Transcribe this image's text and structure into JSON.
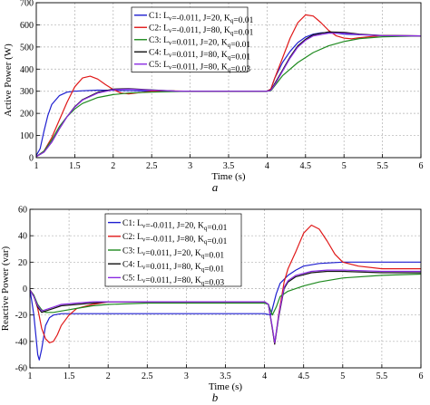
{
  "chart_data": [
    {
      "type": "line",
      "panel_label": "a",
      "xlabel": "Time (s)",
      "ylabel": "Active Power (W)",
      "xlim": [
        1,
        6
      ],
      "ylim": [
        0,
        700
      ],
      "xticks": [
        "1",
        "1.5",
        "2",
        "2.5",
        "3",
        "3.5",
        "4",
        "4.5",
        "5",
        "5.5",
        "6"
      ],
      "yticks": [
        "0",
        "100",
        "200",
        "300",
        "400",
        "500",
        "600",
        "700"
      ],
      "grid": "dashed",
      "legend_position": "top-center",
      "series": [
        {
          "name": "C1: Lv=-0.011, J=20, Kq=0.01",
          "legend": {
            "pre": "C1: L",
            "sub1": "v",
            "mid": "=-0.011, J=20, K",
            "sub2": "q",
            "post": "=0.01"
          },
          "color": "#1f1fd0",
          "x": [
            1,
            1.05,
            1.1,
            1.15,
            1.2,
            1.3,
            1.4,
            1.5,
            1.6,
            1.8,
            2.0,
            2.5,
            3.0,
            3.5,
            4.0,
            4.05,
            4.1,
            4.2,
            4.3,
            4.4,
            4.5,
            4.6,
            4.7,
            4.8,
            4.9,
            5.0,
            5.5,
            6.0
          ],
          "y": [
            10,
            40,
            120,
            190,
            240,
            280,
            296,
            300,
            302,
            305,
            304,
            301,
            300,
            300,
            300,
            310,
            360,
            430,
            480,
            520,
            545,
            558,
            564,
            565,
            562,
            558,
            552,
            550
          ]
        },
        {
          "name": "C2: Lv=-0.011, J=80, Kq=0.01",
          "legend": {
            "pre": "C2: L",
            "sub1": "v",
            "mid": "=-0.011, J=80, K",
            "sub2": "q",
            "post": "=0.01"
          },
          "color": "#e01818",
          "x": [
            1,
            1.1,
            1.2,
            1.3,
            1.4,
            1.5,
            1.6,
            1.7,
            1.8,
            1.9,
            2.0,
            2.1,
            2.2,
            2.3,
            2.5,
            2.7,
            3.0,
            3.5,
            4.0,
            4.05,
            4.1,
            4.2,
            4.3,
            4.4,
            4.5,
            4.6,
            4.7,
            4.8,
            4.9,
            5.0,
            5.1,
            5.2,
            5.5,
            6.0
          ],
          "y": [
            5,
            30,
            90,
            170,
            250,
            320,
            360,
            368,
            355,
            330,
            308,
            292,
            288,
            292,
            300,
            302,
            300,
            300,
            300,
            310,
            360,
            450,
            540,
            610,
            645,
            640,
            610,
            575,
            550,
            540,
            537,
            542,
            552,
            550
          ]
        },
        {
          "name": "C3: Lv=0.011, J=20, Kq=0.01",
          "legend": {
            "pre": "C3: L",
            "sub1": "v",
            "mid": "=0.011, J=20, K",
            "sub2": "q",
            "post": "=0.01"
          },
          "color": "#1f8a1f",
          "x": [
            1,
            1.1,
            1.2,
            1.3,
            1.4,
            1.5,
            1.6,
            1.8,
            2.0,
            2.2,
            2.5,
            2.8,
            3.0,
            3.5,
            4.0,
            4.05,
            4.1,
            4.2,
            4.4,
            4.6,
            4.8,
            5.0,
            5.2,
            5.5,
            6.0
          ],
          "y": [
            5,
            30,
            80,
            140,
            185,
            220,
            245,
            272,
            285,
            292,
            296,
            299,
            300,
            300,
            300,
            302,
            325,
            370,
            430,
            475,
            505,
            525,
            538,
            546,
            550
          ]
        },
        {
          "name": "C4: Lv=0.011, J=80, Kq=0.01",
          "legend": {
            "pre": "C4: L",
            "sub1": "v",
            "mid": "=0.011, J=80, K",
            "sub2": "q",
            "post": "=0.01"
          },
          "color": "#111111",
          "x": [
            1,
            1.1,
            1.2,
            1.3,
            1.4,
            1.5,
            1.6,
            1.8,
            2.0,
            2.2,
            2.5,
            2.8,
            3.0,
            3.5,
            4.0,
            4.05,
            4.1,
            4.2,
            4.3,
            4.4,
            4.5,
            4.6,
            4.8,
            5.0,
            5.2,
            5.5,
            6.0
          ],
          "y": [
            5,
            25,
            70,
            130,
            185,
            230,
            262,
            295,
            310,
            312,
            306,
            301,
            300,
            300,
            300,
            305,
            335,
            395,
            455,
            505,
            535,
            555,
            568,
            566,
            558,
            552,
            550
          ]
        },
        {
          "name": "C5: Lv=0.011, J=80, Kq=0.03",
          "legend": {
            "pre": "C5: L",
            "sub1": "v",
            "mid": "=0.011, J=80, K",
            "sub2": "q",
            "post": "=0.03"
          },
          "color": "#8a2be2",
          "x": [
            1,
            1.1,
            1.2,
            1.3,
            1.4,
            1.5,
            1.6,
            1.8,
            2.0,
            2.2,
            2.5,
            2.8,
            3.0,
            3.5,
            4.0,
            4.05,
            4.1,
            4.2,
            4.3,
            4.4,
            4.5,
            4.6,
            4.8,
            5.0,
            5.2,
            5.5,
            6.0
          ],
          "y": [
            5,
            25,
            70,
            130,
            185,
            228,
            260,
            292,
            307,
            310,
            305,
            301,
            300,
            300,
            300,
            304,
            330,
            390,
            450,
            500,
            530,
            550,
            562,
            562,
            556,
            551,
            550
          ]
        }
      ]
    },
    {
      "type": "line",
      "panel_label": "b",
      "xlabel": "Time (s)",
      "ylabel": "Reactive Power (var)",
      "xlim": [
        1,
        6
      ],
      "ylim": [
        -60,
        60
      ],
      "xticks": [
        "1",
        "1.5",
        "2",
        "2.5",
        "3",
        "3.5",
        "4",
        "4.5",
        "5",
        "5.5",
        "6"
      ],
      "yticks": [
        "-60",
        "-40",
        "-20",
        "0",
        "20",
        "40",
        "60"
      ],
      "grid": "dashed",
      "legend_position": "top-left",
      "series": [
        {
          "name": "C1: Lv=-0.011, J=20, Kq=0.01",
          "legend": {
            "pre": "C1: L",
            "sub1": "v",
            "mid": "=-0.011, J=20, K",
            "sub2": "q",
            "post": "=0.01"
          },
          "color": "#1f1fd0",
          "x": [
            1,
            1.02,
            1.05,
            1.08,
            1.1,
            1.12,
            1.15,
            1.2,
            1.25,
            1.3,
            1.4,
            1.5,
            2.0,
            2.5,
            3.0,
            3.5,
            4.0,
            4.08,
            4.15,
            4.2,
            4.3,
            4.4,
            4.5,
            4.7,
            5.0,
            5.5,
            6.0
          ],
          "y": [
            -1,
            -8,
            -20,
            -38,
            -50,
            -54,
            -46,
            -28,
            -22,
            -20,
            -19,
            -19,
            -19,
            -19,
            -19,
            -19,
            -19,
            -20,
            -4,
            4,
            10,
            14,
            17,
            19,
            20,
            20,
            20
          ]
        },
        {
          "name": "C2: Lv=-0.011, J=80, Kq=0.01",
          "legend": {
            "pre": "C2: L",
            "sub1": "v",
            "mid": "=-0.011, J=80, K",
            "sub2": "q",
            "post": "=0.01"
          },
          "color": "#e01818",
          "x": [
            1,
            1.05,
            1.1,
            1.15,
            1.2,
            1.25,
            1.3,
            1.35,
            1.4,
            1.5,
            1.6,
            1.8,
            2.0,
            2.5,
            3.0,
            3.5,
            4.0,
            4.05,
            4.1,
            4.13,
            4.18,
            4.25,
            4.3,
            4.4,
            4.5,
            4.6,
            4.7,
            4.8,
            4.9,
            5.0,
            5.2,
            5.5,
            6.0
          ],
          "y": [
            -1,
            -5,
            -15,
            -30,
            -38,
            -41,
            -40,
            -35,
            -28,
            -20,
            -15,
            -12,
            -10,
            -10,
            -10,
            -10,
            -10,
            -12,
            -30,
            -42,
            -20,
            5,
            15,
            28,
            42,
            48,
            45,
            36,
            26,
            20,
            17,
            15,
            15
          ]
        },
        {
          "name": "C3: Lv=0.011, J=20, Kq=0.01",
          "legend": {
            "pre": "C3: L",
            "sub1": "v",
            "mid": "=0.011, J=20, K",
            "sub2": "q",
            "post": "=0.01"
          },
          "color": "#1f8a1f",
          "x": [
            1,
            1.05,
            1.1,
            1.15,
            1.2,
            1.3,
            1.4,
            1.6,
            1.8,
            2.0,
            2.5,
            3.0,
            3.5,
            4.0,
            4.05,
            4.1,
            4.15,
            4.2,
            4.3,
            4.5,
            4.7,
            5.0,
            5.5,
            6.0
          ],
          "y": [
            -1,
            -5,
            -12,
            -16,
            -18,
            -18,
            -17,
            -15,
            -13,
            -12,
            -11,
            -11,
            -11,
            -11,
            -12,
            -20,
            -14,
            -6,
            -2,
            2,
            5,
            8,
            10,
            11
          ]
        },
        {
          "name": "C4: Lv=0.011, J=80, Kq=0.01",
          "legend": {
            "pre": "C4: L",
            "sub1": "v",
            "mid": "=0.011, J=80, K",
            "sub2": "q",
            "post": "=0.01"
          },
          "color": "#111111",
          "x": [
            1,
            1.05,
            1.1,
            1.15,
            1.2,
            1.3,
            1.4,
            1.6,
            1.8,
            2.0,
            2.5,
            3.0,
            3.5,
            4.0,
            4.05,
            4.1,
            4.13,
            4.18,
            4.25,
            4.3,
            4.4,
            4.6,
            4.8,
            5.0,
            5.5,
            6.0
          ],
          "y": [
            -1,
            -6,
            -14,
            -18,
            -17,
            -15,
            -13,
            -12,
            -11,
            -10,
            -10,
            -10,
            -10,
            -10,
            -12,
            -30,
            -42,
            -22,
            0,
            5,
            9,
            12,
            13,
            13,
            12,
            12
          ]
        },
        {
          "name": "C5: Lv=0.011, J=80, Kq=0.03",
          "legend": {
            "pre": "C5: L",
            "sub1": "v",
            "mid": "=0.011, J=80, K",
            "sub2": "q",
            "post": "=0.03"
          },
          "color": "#8a2be2",
          "x": [
            1,
            1.05,
            1.1,
            1.15,
            1.2,
            1.3,
            1.4,
            1.6,
            1.8,
            2.0,
            2.5,
            3.0,
            3.5,
            4.0,
            4.05,
            4.1,
            4.13,
            4.18,
            4.25,
            4.3,
            4.4,
            4.6,
            4.8,
            5.0,
            5.5,
            6.0
          ],
          "y": [
            -1,
            -6,
            -13,
            -17,
            -16,
            -14,
            -12,
            -11,
            -10,
            -10,
            -10,
            -10,
            -10,
            -10,
            -12,
            -29,
            -41,
            -21,
            1,
            6,
            10,
            13,
            14,
            14,
            13,
            13
          ]
        }
      ]
    }
  ]
}
